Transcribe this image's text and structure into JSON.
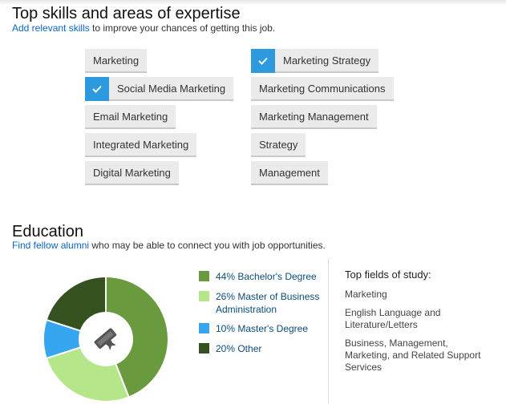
{
  "skills": {
    "title": "Top skills and areas of expertise",
    "subtitle_link": "Add relevant skills",
    "subtitle_rest": " to improve your chances of getting this job.",
    "left_column": [
      {
        "label": "Marketing",
        "checked": false
      },
      {
        "label": "Social Media Marketing",
        "checked": true
      },
      {
        "label": "Email Marketing",
        "checked": false
      },
      {
        "label": "Integrated Marketing",
        "checked": false
      },
      {
        "label": "Digital Marketing",
        "checked": false
      }
    ],
    "right_column": [
      {
        "label": "Marketing Strategy",
        "checked": true
      },
      {
        "label": "Marketing Communications",
        "checked": false
      },
      {
        "label": "Marketing Management",
        "checked": false
      },
      {
        "label": "Strategy",
        "checked": false
      },
      {
        "label": "Management",
        "checked": false
      }
    ]
  },
  "education": {
    "title": "Education",
    "subtitle_link": "Find fellow alumni",
    "subtitle_rest": " who may be able to connect you with job opportunities.",
    "legend": [
      {
        "label": "44% Bachelor's Degree",
        "color": "#6a9a3e"
      },
      {
        "label": "26% Master of Business Administration",
        "color": "#b6e68a"
      },
      {
        "label": "10% Master's Degree",
        "color": "#37a6f0"
      },
      {
        "label": "20% Other",
        "color": "#34511f"
      }
    ],
    "center_icon": "diploma-icon",
    "fields_title": "Top fields of study:",
    "fields": [
      "Marketing",
      "English Language and Literature/Letters",
      "Business, Management, Marketing, and Related Support Services"
    ]
  },
  "chart_data": {
    "type": "pie",
    "categories": [
      "Bachelor's Degree",
      "Master of Business Administration",
      "Master's Degree",
      "Other"
    ],
    "values": [
      44,
      26,
      10,
      20
    ],
    "colors": [
      "#6a9a3e",
      "#b6e68a",
      "#37a6f0",
      "#34511f"
    ],
    "donut": true
  }
}
